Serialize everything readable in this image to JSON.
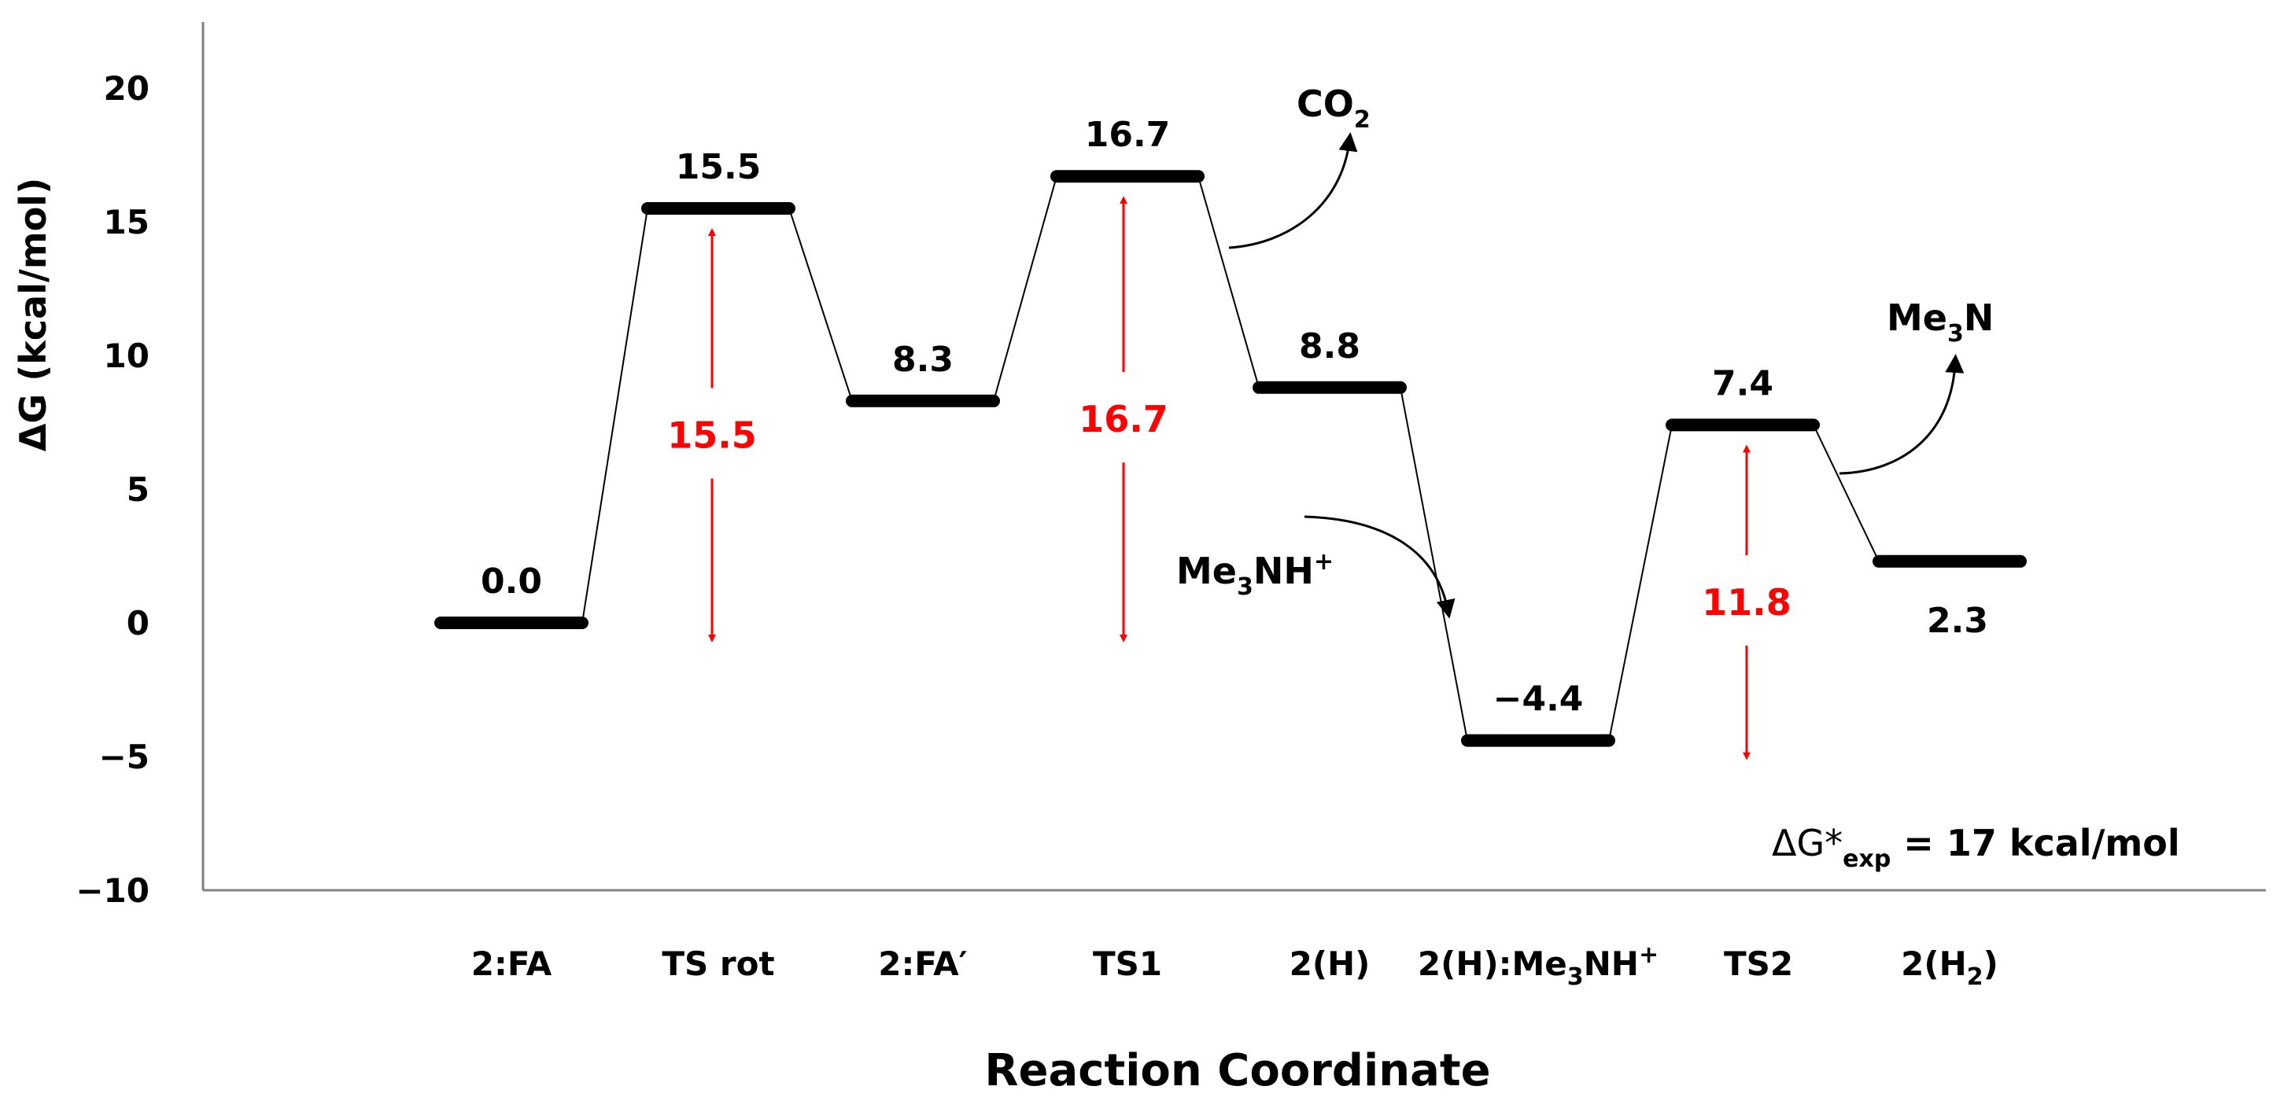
{
  "chart_data": {
    "type": "energy-level-diagram",
    "ylabel": "ΔG (kcal/mol)",
    "xlabel": "Reaction Coordinate",
    "ylim": [
      -10,
      20
    ],
    "yticks": [
      20,
      15,
      10,
      5,
      0,
      -5,
      -10
    ],
    "ytick_labels": [
      "20",
      "15",
      "10",
      "5",
      "0",
      "−5",
      "−10"
    ],
    "categories": [
      "2:FA",
      "TS rot",
      "2:FA′",
      "TS1",
      "2(H)",
      "2(H):Me3NH+",
      "TS2",
      "2(H2)"
    ],
    "values": [
      0.0,
      15.5,
      8.3,
      16.7,
      8.8,
      -4.4,
      7.4,
      2.3
    ],
    "value_labels": [
      "0.0",
      "15.5",
      "8.3",
      "16.7",
      "8.8",
      "−4.4",
      "7.4",
      "2.3"
    ],
    "barriers": [
      {
        "label": "15.5",
        "value": 15.5
      },
      {
        "label": "16.7",
        "value": 16.7
      },
      {
        "label": "11.8",
        "value": 11.8
      }
    ],
    "species": [
      "CO2",
      "Me3N",
      "Me3NH+"
    ],
    "annotation": "ΔG*exp = 17 kcal/mol",
    "colors": {
      "levels": "#000000",
      "barriers": "#ff0000",
      "axis": "#808080"
    }
  }
}
